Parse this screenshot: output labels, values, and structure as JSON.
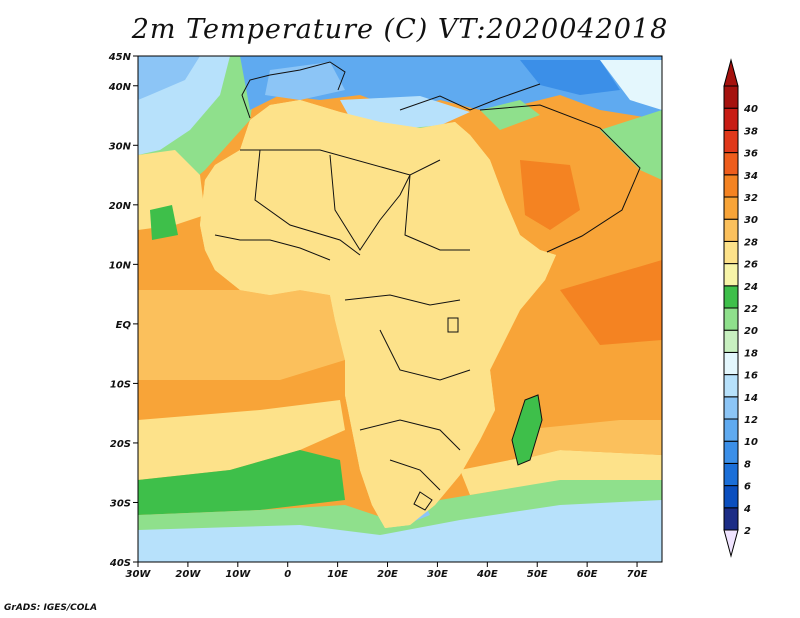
{
  "title": "2m Temperature (C) VT:2020042018",
  "footer": "GrADS: IGES/COLA",
  "map": {
    "lon_range": [
      -30,
      75
    ],
    "lat_range": [
      -40,
      45
    ],
    "lon_ticks": [
      "30W",
      "20W",
      "10W",
      "0",
      "10E",
      "20E",
      "30E",
      "40E",
      "50E",
      "60E",
      "70E"
    ],
    "lat_ticks": [
      "45N",
      "40N",
      "30N",
      "20N",
      "10N",
      "EQ",
      "10S",
      "20S",
      "30S",
      "40S"
    ],
    "colorbar": {
      "levels": [
        "2",
        "4",
        "6",
        "8",
        "10",
        "12",
        "14",
        "16",
        "18",
        "20",
        "22",
        "24",
        "26",
        "28",
        "30",
        "32",
        "34",
        "36",
        "38",
        "40"
      ],
      "colors": [
        "#1c2d86",
        "#0b4fbf",
        "#1b6fd8",
        "#3b8fe8",
        "#5faaf0",
        "#8cc5f6",
        "#b7e1fb",
        "#e4f7fd",
        "#c8f0c0",
        "#8fe08c",
        "#3ebf4a",
        "#f7f4a8",
        "#fde28a",
        "#fbc05c",
        "#f8a438",
        "#f48322",
        "#ee5d1c",
        "#e0381a",
        "#c81c14",
        "#a5120e"
      ],
      "under_color": "#f0e4ff",
      "over_color": "#a5120e"
    }
  }
}
